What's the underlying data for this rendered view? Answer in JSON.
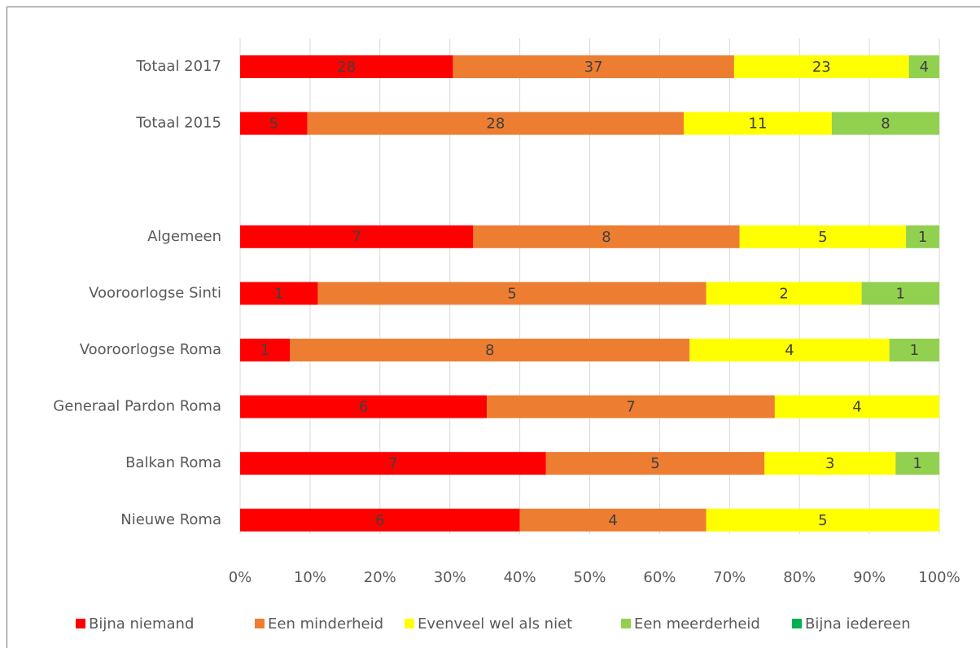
{
  "chart_data": {
    "type": "bar",
    "orientation": "horizontal",
    "stack": "percent",
    "categories": [
      "Totaal 2017",
      "Totaal 2015",
      null,
      "Algemeen",
      "Vooroorlogse Sinti",
      "Vooroorlogse Roma",
      "Generaal Pardon Roma",
      "Balkan Roma",
      "Nieuwe Roma"
    ],
    "series": [
      {
        "name": "Bijna niemand",
        "color": "#ff0000",
        "values": [
          28,
          5,
          null,
          7,
          1,
          1,
          6,
          7,
          6
        ]
      },
      {
        "name": "Een minderheid",
        "color": "#ed7d31",
        "values": [
          37,
          28,
          null,
          8,
          5,
          8,
          7,
          5,
          4
        ]
      },
      {
        "name": "Evenveel wel als niet",
        "color": "#ffff00",
        "values": [
          23,
          11,
          null,
          5,
          2,
          4,
          4,
          3,
          5
        ]
      },
      {
        "name": "Een meerderheid",
        "color": "#92d050",
        "values": [
          4,
          8,
          null,
          1,
          1,
          1,
          null,
          1,
          null
        ]
      },
      {
        "name": "Bijna iedereen",
        "color": "#00b050",
        "values": [
          null,
          null,
          null,
          null,
          null,
          null,
          null,
          null,
          null
        ]
      }
    ],
    "xlim": [
      0,
      100
    ],
    "xticks": [
      {
        "value": 0,
        "label": "0%"
      },
      {
        "value": 10,
        "label": "10%"
      },
      {
        "value": 20,
        "label": "20%"
      },
      {
        "value": 30,
        "label": "30%"
      },
      {
        "value": 40,
        "label": "40%"
      },
      {
        "value": 50,
        "label": "50%"
      },
      {
        "value": 60,
        "label": "60%"
      },
      {
        "value": 70,
        "label": "70%"
      },
      {
        "value": 80,
        "label": "80%"
      },
      {
        "value": 90,
        "label": "90%"
      },
      {
        "value": 100,
        "label": "100%"
      }
    ],
    "grid": true,
    "legend": "bottom"
  }
}
